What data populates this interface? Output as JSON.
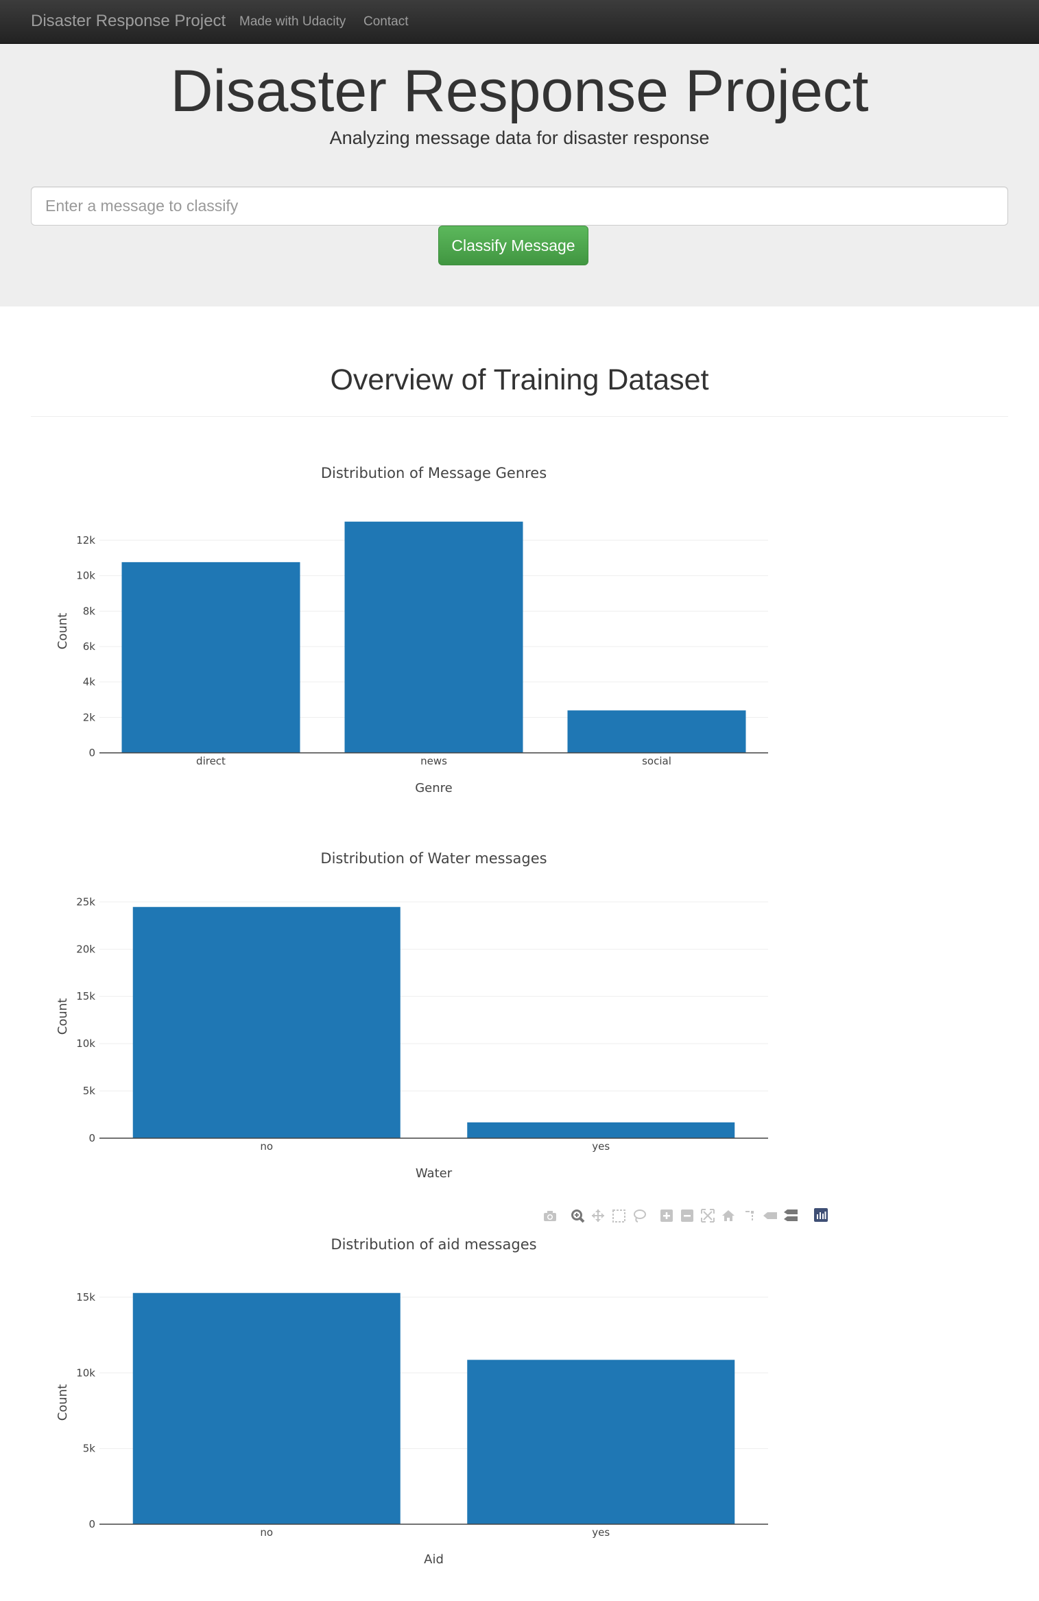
{
  "navbar": {
    "brand": "Disaster Response Project",
    "links": [
      "Made with Udacity",
      "Contact"
    ]
  },
  "jumbotron": {
    "title": "Disaster Response Project",
    "subtitle": "Analyzing message data for disaster response",
    "input_placeholder": "Enter a message to classify",
    "button_label": "Classify Message"
  },
  "main": {
    "section_title": "Overview of Training Dataset"
  },
  "colors": {
    "bar": "#1f77b4",
    "navbar": "#222222",
    "jumbotron": "#eeeeee",
    "button": "#5cb85c"
  },
  "modebar_icons": [
    "camera-icon",
    "zoom-icon",
    "pan-icon",
    "box-select-icon",
    "lasso-select-icon",
    "zoom-in-icon",
    "zoom-out-icon",
    "autoscale-icon",
    "reset-axes-icon",
    "spike-lines-icon",
    "hover-closest-icon",
    "hover-compare-icon",
    "plotly-logo-icon"
  ],
  "chart_data": [
    {
      "type": "bar",
      "title": "Distribution of Message Genres",
      "xlabel": "Genre",
      "ylabel": "Count",
      "categories": [
        "direct",
        "news",
        "social"
      ],
      "values": [
        10766,
        13054,
        2396
      ],
      "ylim": [
        0,
        13742
      ],
      "yticks": [
        0,
        2000,
        4000,
        6000,
        8000,
        10000,
        12000
      ],
      "yticklabels": [
        "0",
        "2k",
        "4k",
        "6k",
        "8k",
        "10k",
        "12k"
      ],
      "grid": true
    },
    {
      "type": "bar",
      "title": "Distribution of Water messages",
      "xlabel": "Water",
      "ylabel": "Count",
      "categories": [
        "no",
        "yes"
      ],
      "values": [
        24466,
        1672
      ],
      "ylim": [
        0,
        25754
      ],
      "yticks": [
        0,
        5000,
        10000,
        15000,
        20000,
        25000
      ],
      "yticklabels": [
        "0",
        "5k",
        "10k",
        "15k",
        "20k",
        "25k"
      ],
      "grid": true
    },
    {
      "type": "bar",
      "title": "Distribution of aid messages",
      "xlabel": "Aid",
      "ylabel": "Count",
      "categories": [
        "no",
        "yes"
      ],
      "values": [
        15278,
        10860
      ],
      "ylim": [
        0,
        16082
      ],
      "yticks": [
        0,
        5000,
        10000,
        15000
      ],
      "yticklabels": [
        "0",
        "5k",
        "10k",
        "15k"
      ],
      "grid": true
    }
  ]
}
